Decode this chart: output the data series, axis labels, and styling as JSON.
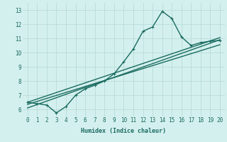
{
  "xlabel": "Humidex (Indice chaleur)",
  "bg_color": "#d4f0ee",
  "grid_color": "#b8dcd8",
  "line_color": "#1a6b60",
  "xlim": [
    -0.5,
    20.5
  ],
  "ylim": [
    5.5,
    13.5
  ],
  "xticks": [
    0,
    1,
    2,
    3,
    4,
    5,
    6,
    7,
    8,
    9,
    10,
    11,
    12,
    13,
    14,
    15,
    16,
    17,
    18,
    19,
    20
  ],
  "yticks": [
    6,
    7,
    8,
    9,
    10,
    11,
    12,
    13
  ],
  "series": [
    {
      "x": [
        0,
        1,
        2,
        3,
        4,
        5,
        6,
        7,
        8,
        9,
        10,
        11,
        12,
        13,
        14,
        15,
        16,
        17,
        18,
        19,
        20
      ],
      "y": [
        6.5,
        6.4,
        6.3,
        5.75,
        6.2,
        7.0,
        7.45,
        7.7,
        8.0,
        8.5,
        9.35,
        10.25,
        11.5,
        11.8,
        12.9,
        12.4,
        11.1,
        10.5,
        10.7,
        10.8,
        10.85
      ],
      "marker": true,
      "lw": 1.0
    },
    {
      "x": [
        0,
        20
      ],
      "y": [
        6.5,
        11.05
      ],
      "marker": false,
      "lw": 1.0
    },
    {
      "x": [
        0,
        20
      ],
      "y": [
        6.35,
        10.55
      ],
      "marker": false,
      "lw": 1.0
    },
    {
      "x": [
        0,
        20
      ],
      "y": [
        6.1,
        10.9
      ],
      "marker": false,
      "lw": 1.0
    }
  ]
}
